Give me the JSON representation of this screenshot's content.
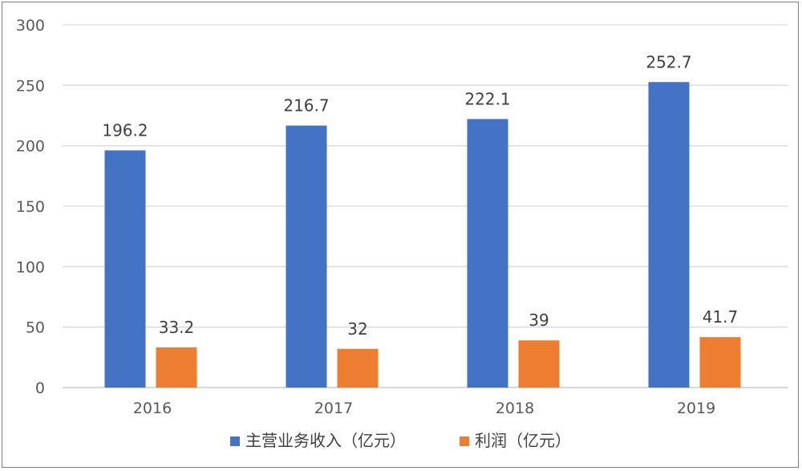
{
  "chart_data": {
    "type": "bar",
    "categories": [
      "2016",
      "2017",
      "2018",
      "2019"
    ],
    "series": [
      {
        "name": "主营业务收入（亿元）",
        "values": [
          196.2,
          216.7,
          222.1,
          252.7
        ],
        "labels": [
          "196.2",
          "216.7",
          "222.1",
          "252.7"
        ],
        "color": "#4472c4"
      },
      {
        "name": "利润（亿元）",
        "values": [
          33.2,
          32,
          39,
          41.7
        ],
        "labels": [
          "33.2",
          "32",
          "39",
          "41.7"
        ],
        "color": "#ed7d31"
      }
    ],
    "ylim": [
      0,
      300
    ],
    "yticks": [
      0,
      50,
      100,
      150,
      200,
      250,
      300
    ],
    "grid": true,
    "legend": "bottom",
    "title": "",
    "xlabel": "",
    "ylabel": ""
  }
}
